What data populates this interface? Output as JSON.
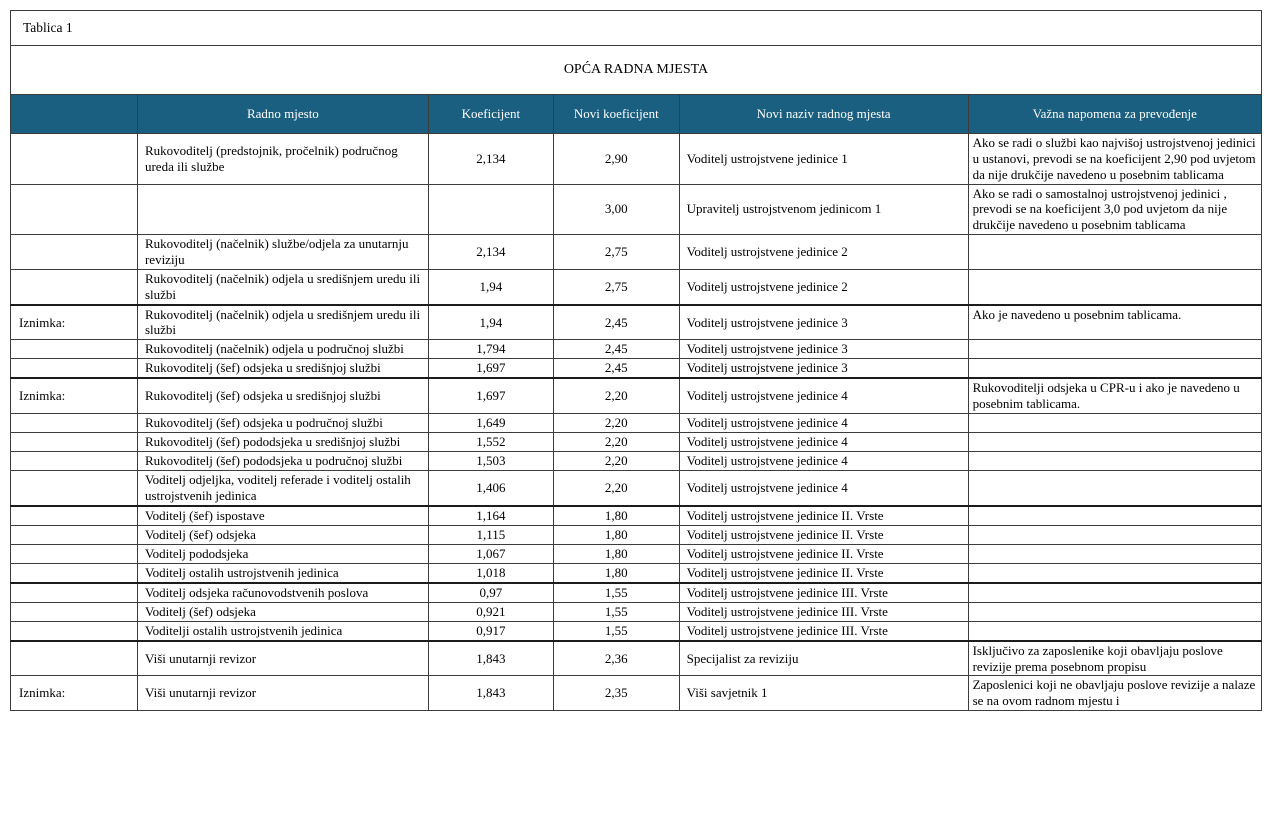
{
  "table": {
    "label": "Tablica 1",
    "title": "OPĆA RADNA MJESTA",
    "header_bg": "#1A5E80",
    "columns": [
      "",
      "Radno mjesto",
      "Koeficijent",
      "Novi koeficijent",
      "Novi naziv radnog mjesta",
      "Važna napomena za prevođenje"
    ],
    "rows": [
      {
        "exception": "",
        "job": "Rukovoditelj (predstojnik, pročelnik) područnog ureda ili službe",
        "coef": "2,134",
        "new_coef": "2,90",
        "new_title": "Voditelj ustrojstvene jedinice 1",
        "note": "Ako se radi o službi kao najvišoj ustrojstvenoj jedinici u ustanovi, prevodi se na koeficijent 2,90 pod uvjetom da nije drukčije navedeno u posebnim tablicama",
        "group_start": false
      },
      {
        "exception": "",
        "job": "",
        "coef": "",
        "new_coef": "3,00",
        "new_title": "Upravitelj ustrojstvenom jedinicom 1",
        "note": "Ako se radi o samostalnoj ustrojstvenoj jedinici , prevodi se na koeficijent 3,0 pod uvjetom da nije drukčije navedeno u posebnim tablicama",
        "group_start": false
      },
      {
        "exception": "",
        "job": "Rukovoditelj (načelnik) službe/odjela za unutarnju reviziju",
        "coef": "2,134",
        "new_coef": "2,75",
        "new_title": "Voditelj ustrojstvene jedinice 2",
        "note": "",
        "group_start": false
      },
      {
        "exception": "",
        "job": "Rukovoditelj (načelnik) odjela u središnjem uredu ili službi",
        "coef": "1,94",
        "new_coef": "2,75",
        "new_title": "Voditelj ustrojstvene jedinice 2",
        "note": "",
        "group_start": false
      },
      {
        "exception": "Iznimka:",
        "job": "Rukovoditelj (načelnik) odjela u središnjem uredu ili službi",
        "coef": "1,94",
        "new_coef": "2,45",
        "new_title": "Voditelj ustrojstvene jedinice 3",
        "note": "Ako je navedeno u posebnim tablicama.",
        "group_start": true
      },
      {
        "exception": "",
        "job": "Rukovoditelj (načelnik) odjela u područnoj službi",
        "coef": "1,794",
        "new_coef": "2,45",
        "new_title": "Voditelj ustrojstvene jedinice 3",
        "note": "",
        "group_start": false
      },
      {
        "exception": "",
        "job": "Rukovoditelj (šef) odsjeka u središnjoj službi",
        "coef": "1,697",
        "new_coef": "2,45",
        "new_title": "Voditelj ustrojstvene jedinice 3",
        "note": "",
        "group_start": false
      },
      {
        "exception": "Iznimka:",
        "job": "Rukovoditelj (šef) odsjeka u središnjoj službi",
        "coef": "1,697",
        "new_coef": "2,20",
        "new_title": "Voditelj ustrojstvene jedinice 4",
        "note": "Rukovoditelji odsjeka u CPR-u i ako je navedeno u posebnim tablicama.",
        "group_start": true
      },
      {
        "exception": "",
        "job": "Rukovoditelj (šef) odsjeka u područnoj službi",
        "coef": "1,649",
        "new_coef": "2,20",
        "new_title": "Voditelj ustrojstvene jedinice 4",
        "note": "",
        "group_start": false
      },
      {
        "exception": "",
        "job": "Rukovoditelj (šef) pododsjeka u središnjoj službi",
        "coef": "1,552",
        "new_coef": "2,20",
        "new_title": "Voditelj ustrojstvene jedinice 4",
        "note": "",
        "group_start": false
      },
      {
        "exception": "",
        "job": "Rukovoditelj (šef) pododsjeka u područnoj službi",
        "coef": "1,503",
        "new_coef": "2,20",
        "new_title": "Voditelj ustrojstvene jedinice 4",
        "note": "",
        "group_start": false
      },
      {
        "exception": "",
        "job": "Voditelj odjeljka, voditelj referade i voditelj ostalih ustrojstvenih jedinica",
        "coef": "1,406",
        "new_coef": "2,20",
        "new_title": "Voditelj ustrojstvene jedinice 4",
        "note": "",
        "group_start": false
      },
      {
        "exception": "",
        "job": "Voditelj (šef) ispostave",
        "coef": "1,164",
        "new_coef": "1,80",
        "new_title": "Voditelj ustrojstvene jedinice II. Vrste",
        "note": "",
        "group_start": true
      },
      {
        "exception": "",
        "job": "Voditelj (šef) odsjeka",
        "coef": "1,115",
        "new_coef": "1,80",
        "new_title": "Voditelj ustrojstvene jedinice II. Vrste",
        "note": "",
        "group_start": false
      },
      {
        "exception": "",
        "job": "Voditelj pododsjeka",
        "coef": "1,067",
        "new_coef": "1,80",
        "new_title": "Voditelj ustrojstvene jedinice II. Vrste",
        "note": "",
        "group_start": false
      },
      {
        "exception": "",
        "job": "Voditelj ostalih ustrojstvenih jedinica",
        "coef": "1,018",
        "new_coef": "1,80",
        "new_title": "Voditelj ustrojstvene jedinice II. Vrste",
        "note": "",
        "group_start": false
      },
      {
        "exception": "",
        "job": "Voditelj odsjeka računovodstvenih poslova",
        "coef": "0,97",
        "new_coef": "1,55",
        "new_title": "Voditelj ustrojstvene jedinice III. Vrste",
        "note": "",
        "group_start": true
      },
      {
        "exception": "",
        "job": "Voditelj (šef) odsjeka",
        "coef": "0,921",
        "new_coef": "1,55",
        "new_title": "Voditelj ustrojstvene jedinice III. Vrste",
        "note": "",
        "group_start": false
      },
      {
        "exception": "",
        "job": "Voditelji ostalih ustrojstvenih jedinica",
        "coef": "0,917",
        "new_coef": "1,55",
        "new_title": "Voditelj ustrojstvene jedinice III. Vrste",
        "note": "",
        "group_start": false
      },
      {
        "exception": "",
        "job": "Viši unutarnji revizor",
        "coef": "1,843",
        "new_coef": "2,36",
        "new_title": "Specijalist za reviziju",
        "note": "Isključivo za zaposlenike koji obavljaju poslove revizije prema posebnom propisu",
        "group_start": true
      },
      {
        "exception": "Iznimka:",
        "job": "Viši unutarnji revizor",
        "coef": "1,843",
        "new_coef": "2,35",
        "new_title": "Viši savjetnik 1",
        "note": "Zaposlenici koji ne obavljaju poslove revizije a nalaze se na ovom radnom mjestu i",
        "group_start": false
      }
    ]
  }
}
